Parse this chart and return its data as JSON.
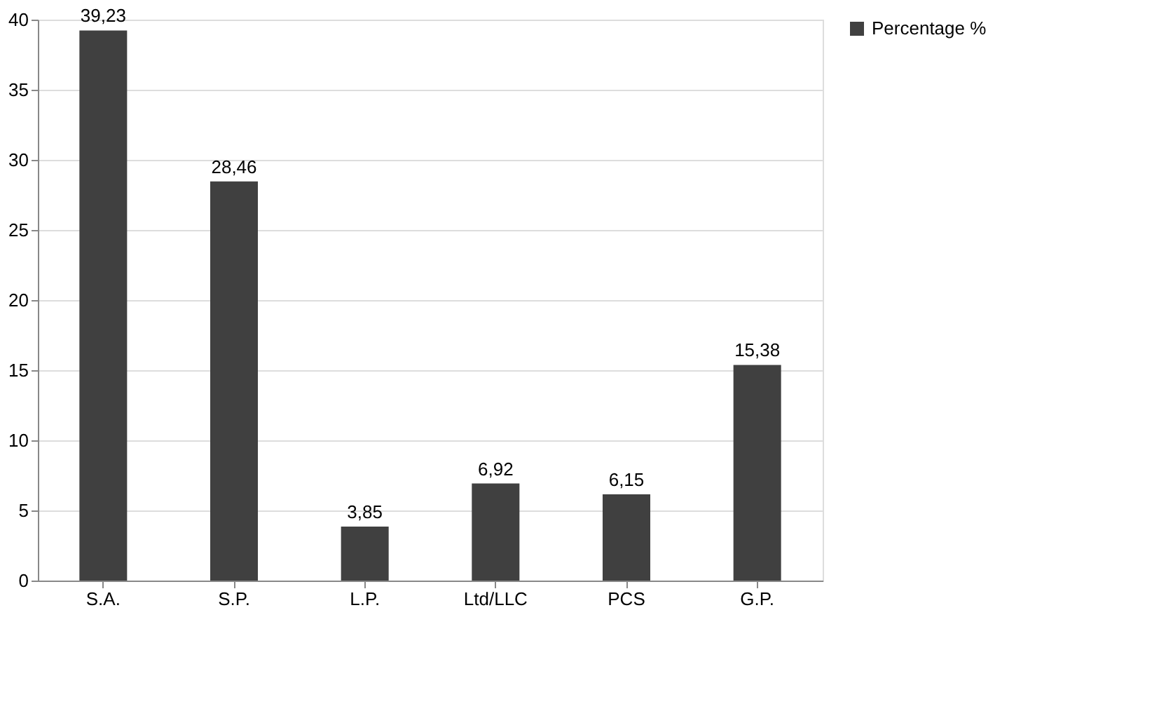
{
  "chart_data": {
    "type": "bar",
    "categories": [
      "S.A.",
      "S.P.",
      "L.P.",
      "Ltd/LLC",
      "PCS",
      "G.P."
    ],
    "series": [
      {
        "name": "Percentage %",
        "color": "#404040",
        "values": [
          39.23,
          28.46,
          3.85,
          6.92,
          6.15,
          15.38
        ],
        "value_labels": [
          "39,23",
          "28,46",
          "3,85",
          "6,92",
          "6,15",
          "15,38"
        ]
      }
    ],
    "ylim": [
      0,
      40
    ],
    "yticks": [
      0,
      5,
      10,
      15,
      20,
      25,
      30,
      35,
      40
    ],
    "grid": "y",
    "legend": "right"
  }
}
